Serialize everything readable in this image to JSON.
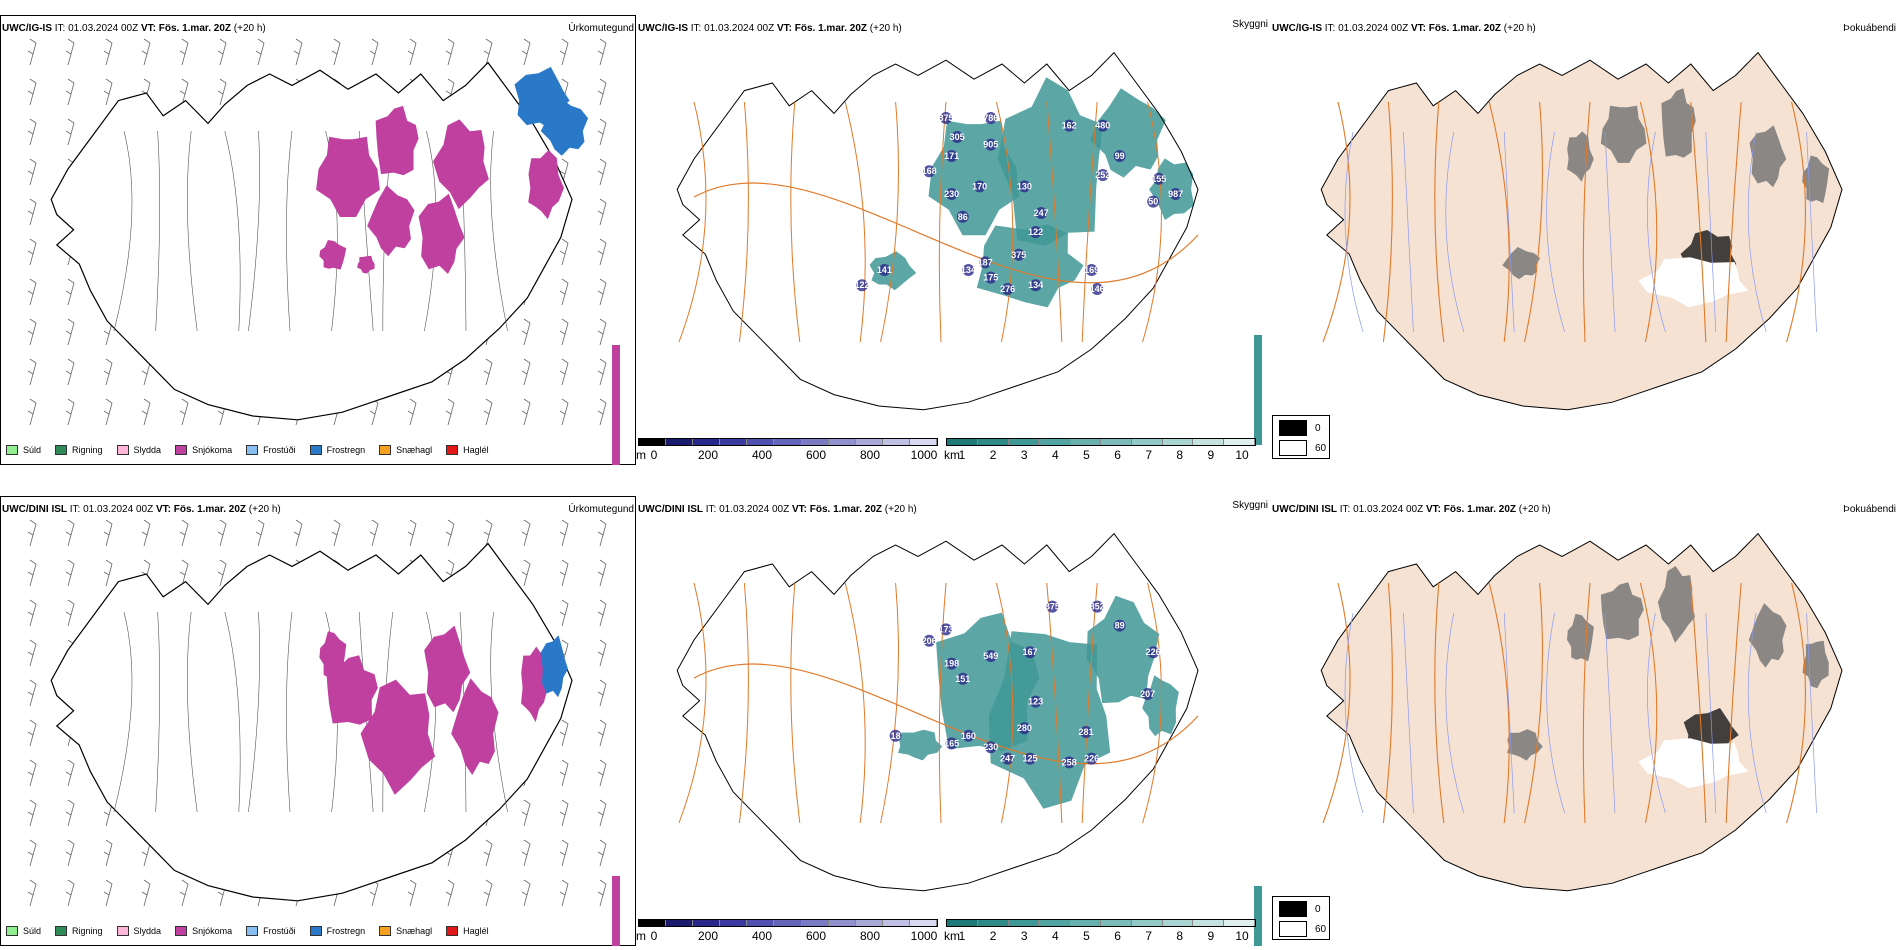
{
  "rows": [
    {
      "model": "UWC/IG-IS",
      "it_label": "IT:",
      "it_value": "01.03.2024 00Z",
      "vt_label": "VT:",
      "vt_value": "Fös. 1.mar. 20Z",
      "lead": "(+20 h)",
      "panels": [
        "Úrkomutegund",
        "Skyggni",
        "Þokuábendi"
      ],
      "visibility_labels": [
        {
          "text": "375"
        },
        {
          "text": "305"
        },
        {
          "text": "786"
        },
        {
          "text": "905"
        },
        {
          "text": "171"
        },
        {
          "text": "168"
        },
        {
          "text": "170"
        },
        {
          "text": "230"
        },
        {
          "text": "86"
        },
        {
          "text": "130"
        },
        {
          "text": "162"
        },
        {
          "text": "480"
        },
        {
          "text": "99"
        },
        {
          "text": "252"
        },
        {
          "text": "155"
        },
        {
          "text": "50"
        },
        {
          "text": "987"
        },
        {
          "text": "247"
        },
        {
          "text": "122"
        },
        {
          "text": "375"
        },
        {
          "text": "134"
        },
        {
          "text": "187"
        },
        {
          "text": "141"
        },
        {
          "text": "122"
        },
        {
          "text": "175"
        },
        {
          "text": "276"
        },
        {
          "text": "134"
        },
        {
          "text": "169"
        },
        {
          "text": "146"
        }
      ]
    },
    {
      "model": "UWC/DINI ISL",
      "it_label": "IT:",
      "it_value": "01.03.2024 00Z",
      "vt_label": "VT:",
      "vt_value": "Fös. 1.mar. 20Z",
      "lead": "(+20 h)",
      "panels": [
        "Úrkomutegund",
        "Skyggni",
        "Þokuábendi"
      ],
      "visibility_labels": [
        {
          "text": "375"
        },
        {
          "text": "852"
        },
        {
          "text": "173"
        },
        {
          "text": "206"
        },
        {
          "text": "198"
        },
        {
          "text": "549"
        },
        {
          "text": "167"
        },
        {
          "text": "89"
        },
        {
          "text": "151"
        },
        {
          "text": "226"
        },
        {
          "text": "123"
        },
        {
          "text": "207"
        },
        {
          "text": "280"
        },
        {
          "text": "281"
        },
        {
          "text": "165"
        },
        {
          "text": "160"
        },
        {
          "text": "230"
        },
        {
          "text": "247"
        },
        {
          "text": "125"
        },
        {
          "text": "258"
        },
        {
          "text": "226"
        },
        {
          "text": "18"
        }
      ]
    }
  ],
  "precip_legend": [
    {
      "label": "Súld",
      "color": "#90ee90"
    },
    {
      "label": "Rigning",
      "color": "#2e8b57"
    },
    {
      "label": "Slydda",
      "color": "#ffb6d9"
    },
    {
      "label": "Snjókoma",
      "color": "#c040a0"
    },
    {
      "label": "Frostúði",
      "color": "#87bff0"
    },
    {
      "label": "Frostregn",
      "color": "#2a78c8"
    },
    {
      "label": "Snæhagl",
      "color": "#f5a020"
    },
    {
      "label": "Haglél",
      "color": "#e01818"
    }
  ],
  "height_scale": {
    "unit": "m",
    "ticks": [
      "0",
      "200",
      "400",
      "600",
      "800",
      "1000"
    ],
    "colors": [
      "#000000",
      "#1a1a6e",
      "#28288a",
      "#3a3aa0",
      "#5050b0",
      "#6565bb",
      "#7a7ac4",
      "#9090cc",
      "#a8a8d8",
      "#c0c0e4",
      "#d8d8f0"
    ]
  },
  "distance_scale": {
    "unit": "km",
    "ticks": [
      "1",
      "2",
      "3",
      "4",
      "5",
      "6",
      "7",
      "8",
      "9",
      "10"
    ],
    "colors": [
      "#1e7a78",
      "#2e8a88",
      "#3f9896",
      "#52a4a2",
      "#66b0ae",
      "#7bbcba",
      "#92c8c6",
      "#aad4d2",
      "#c4e2e0",
      "#e0f0ef"
    ]
  },
  "fog_legend": {
    "items": [
      {
        "label": "0",
        "color": "#000000"
      },
      {
        "label": "60",
        "color": "#ffffff"
      }
    ]
  },
  "colors": {
    "snow": "#c040a0",
    "freezing_rain": "#2a78c8",
    "visibility_fill": "#3f9896",
    "roads": "#e07a2a",
    "land_fog": "#f5e2d3",
    "rivers": "#8a9af0"
  }
}
